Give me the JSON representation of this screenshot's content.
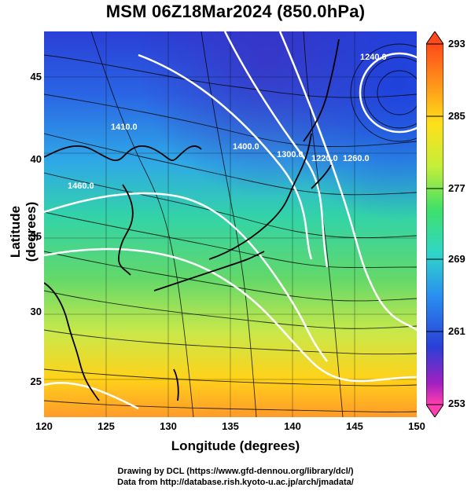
{
  "title": "MSM 06Z18Mar2024 (850.0hPa)",
  "map": {
    "xlabel": "Longitude (degrees)",
    "ylabel": "Latitude (degrees)",
    "lon_range": [
      120,
      150
    ],
    "lat_range": [
      22.4,
      47.6
    ],
    "x_ticks": [
      "120",
      "125",
      "130",
      "135",
      "140",
      "145",
      "150"
    ],
    "y_ticks": [
      "25",
      "30",
      "35",
      "40",
      "45"
    ],
    "contour_labels": [
      "1240.0",
      "1220.0",
      "1300.0",
      "1400.0",
      "1410.0",
      "1460.0",
      "1260.0"
    ],
    "colorbar_ticks": [
      "293",
      "285",
      "277",
      "269",
      "261",
      "253"
    ],
    "colorbar_range": [
      253,
      293
    ]
  },
  "credits": {
    "line1": "Drawing by DCL (https://www.gfd-dennou.org/library/dcl/)",
    "line2": "Data from http://database.rish.kyoto-u.ac.jp/arch/jmadata/"
  }
}
